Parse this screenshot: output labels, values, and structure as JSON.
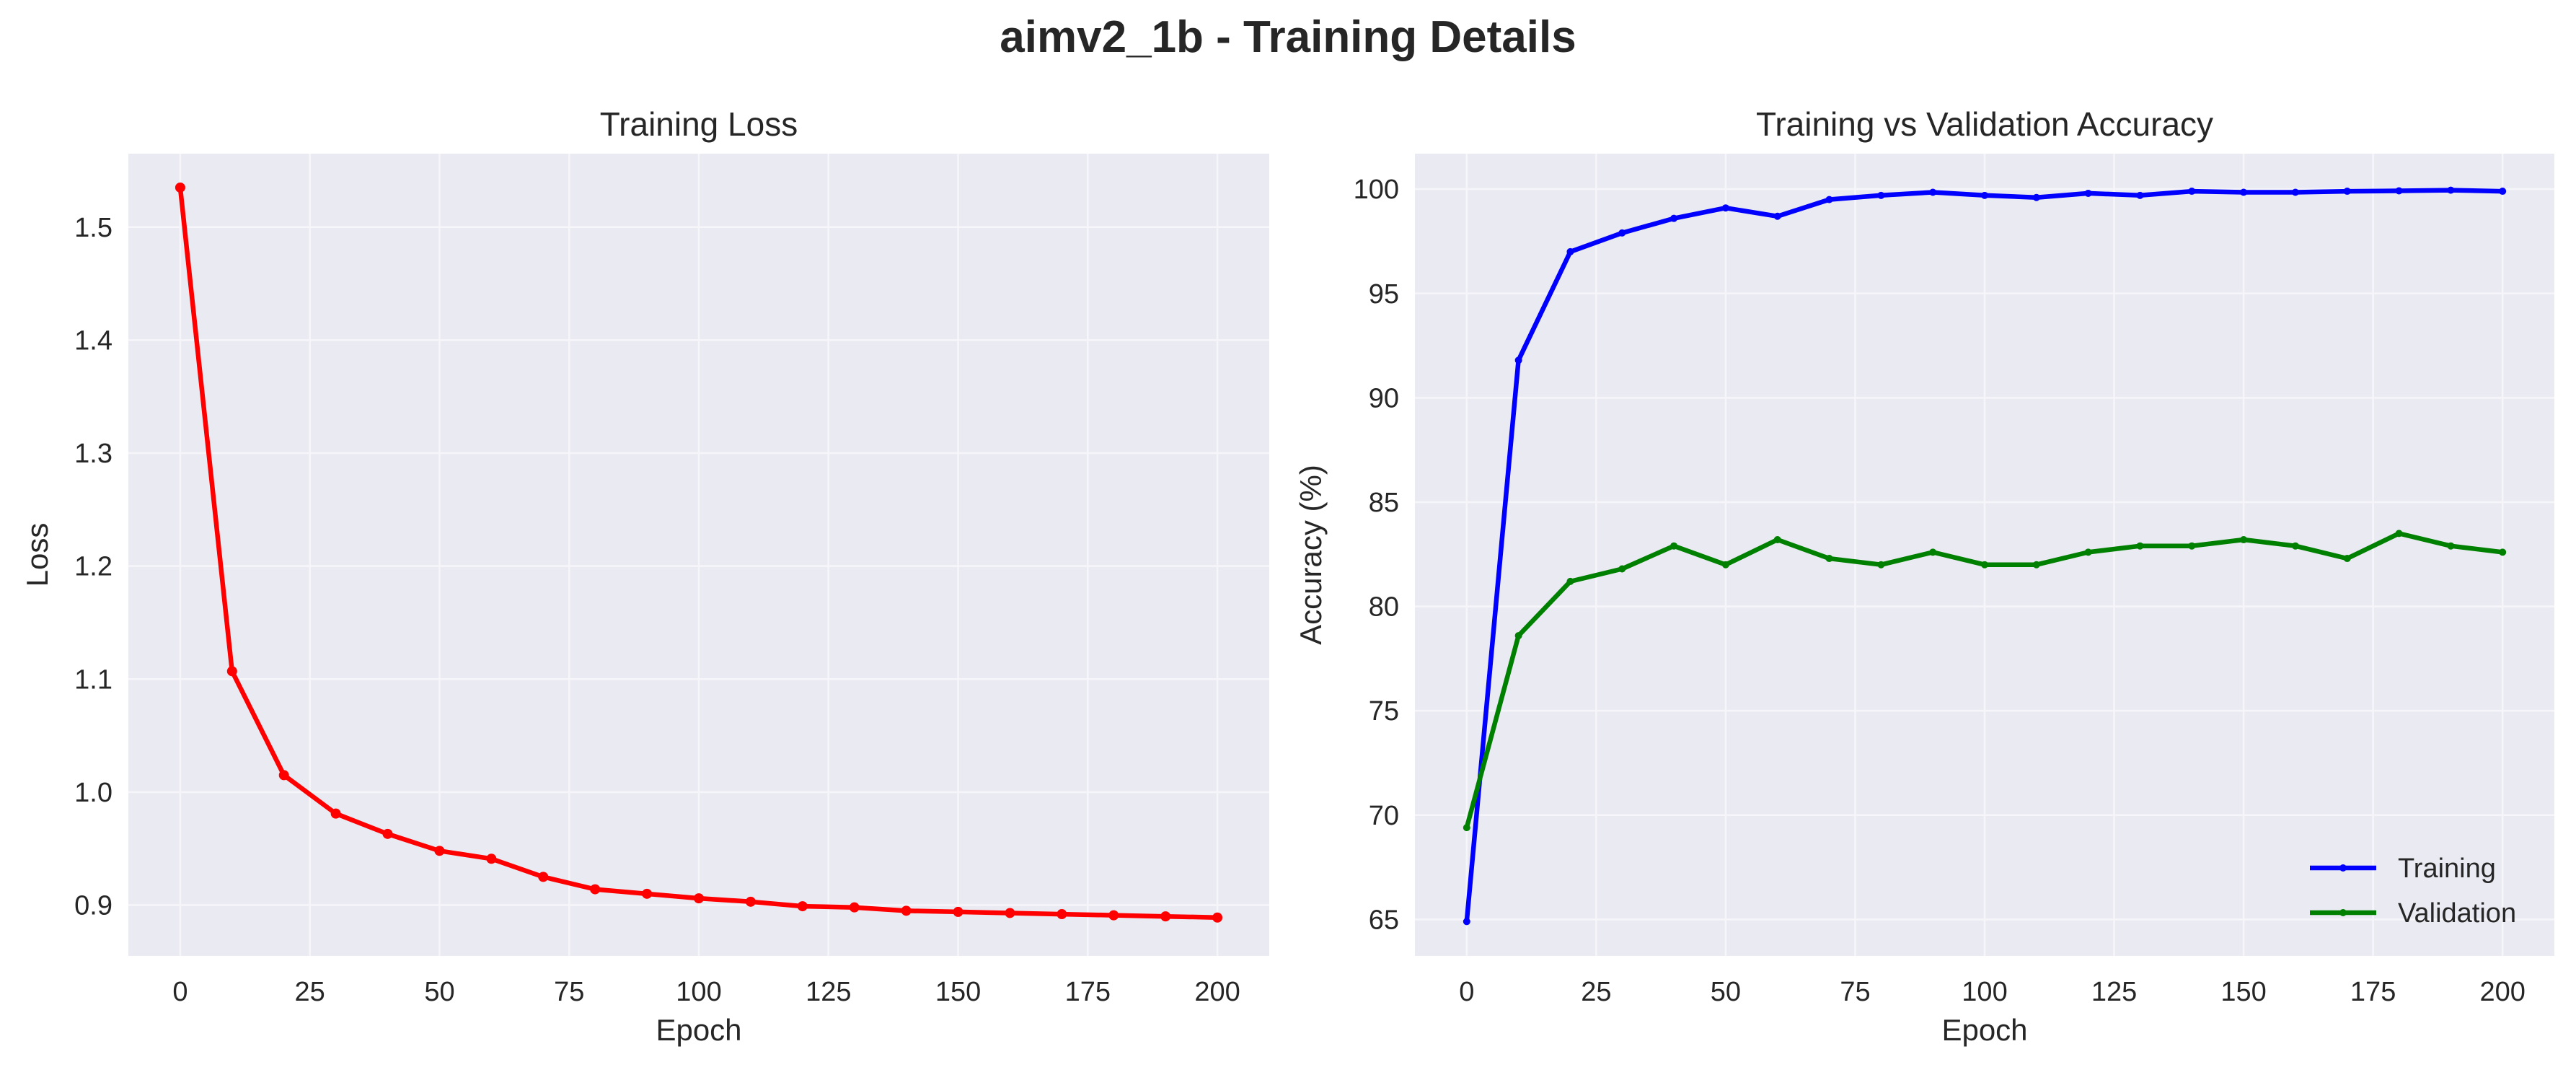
{
  "figure": {
    "title": "aimv2_1b - Training Details"
  },
  "colors": {
    "plot_bg": "#EAEAF2",
    "grid": "#F6F6FA",
    "text": "#262626",
    "loss": "#FF0000",
    "training": "#0000FF",
    "validation": "#008000"
  },
  "chart_data": [
    {
      "type": "line",
      "title": "Training Loss",
      "xlabel": "Epoch",
      "ylabel": "Loss",
      "xlim": [
        -10,
        210
      ],
      "ylim": [
        0.855,
        1.565
      ],
      "xticks": [
        0,
        25,
        50,
        75,
        100,
        125,
        150,
        175,
        200
      ],
      "yticks": [
        0.9,
        1.0,
        1.1,
        1.2,
        1.3,
        1.4,
        1.5
      ],
      "grid": true,
      "x": [
        0,
        10,
        20,
        30,
        40,
        50,
        60,
        70,
        80,
        90,
        100,
        110,
        120,
        130,
        140,
        150,
        160,
        170,
        180,
        190,
        200
      ],
      "series": [
        {
          "values": [
            1.535,
            1.107,
            1.015,
            0.981,
            0.963,
            0.948,
            0.941,
            0.925,
            0.914,
            0.91,
            0.906,
            0.903,
            0.899,
            0.898,
            0.895,
            0.894,
            0.893,
            0.892,
            0.891,
            0.89,
            0.889
          ],
          "color": "#FF0000"
        }
      ]
    },
    {
      "type": "line",
      "title": "Training vs Validation Accuracy",
      "xlabel": "Epoch",
      "ylabel": "Accuracy (%)",
      "xlim": [
        -10,
        210
      ],
      "ylim": [
        63.25,
        101.7
      ],
      "xticks": [
        0,
        25,
        50,
        75,
        100,
        125,
        150,
        175,
        200
      ],
      "yticks": [
        65,
        70,
        75,
        80,
        85,
        90,
        95,
        100
      ],
      "grid": true,
      "legend": "lower-right",
      "x": [
        0,
        10,
        20,
        30,
        40,
        50,
        60,
        70,
        80,
        90,
        100,
        110,
        120,
        130,
        140,
        150,
        160,
        170,
        180,
        190,
        200
      ],
      "series": [
        {
          "name": "Training",
          "color": "#0000FF",
          "values": [
            64.9,
            91.8,
            97.0,
            97.9,
            98.6,
            99.1,
            98.7,
            99.5,
            99.7,
            99.85,
            99.7,
            99.6,
            99.8,
            99.7,
            99.9,
            99.85,
            99.85,
            99.9,
            99.92,
            99.95,
            99.9
          ]
        },
        {
          "name": "Validation",
          "color": "#008000",
          "values": [
            69.4,
            78.6,
            81.2,
            81.8,
            82.9,
            82.0,
            83.2,
            82.3,
            82.0,
            82.6,
            82.0,
            82.0,
            82.6,
            82.9,
            82.9,
            83.2,
            82.9,
            82.3,
            83.5,
            82.9,
            82.6
          ]
        }
      ]
    }
  ]
}
